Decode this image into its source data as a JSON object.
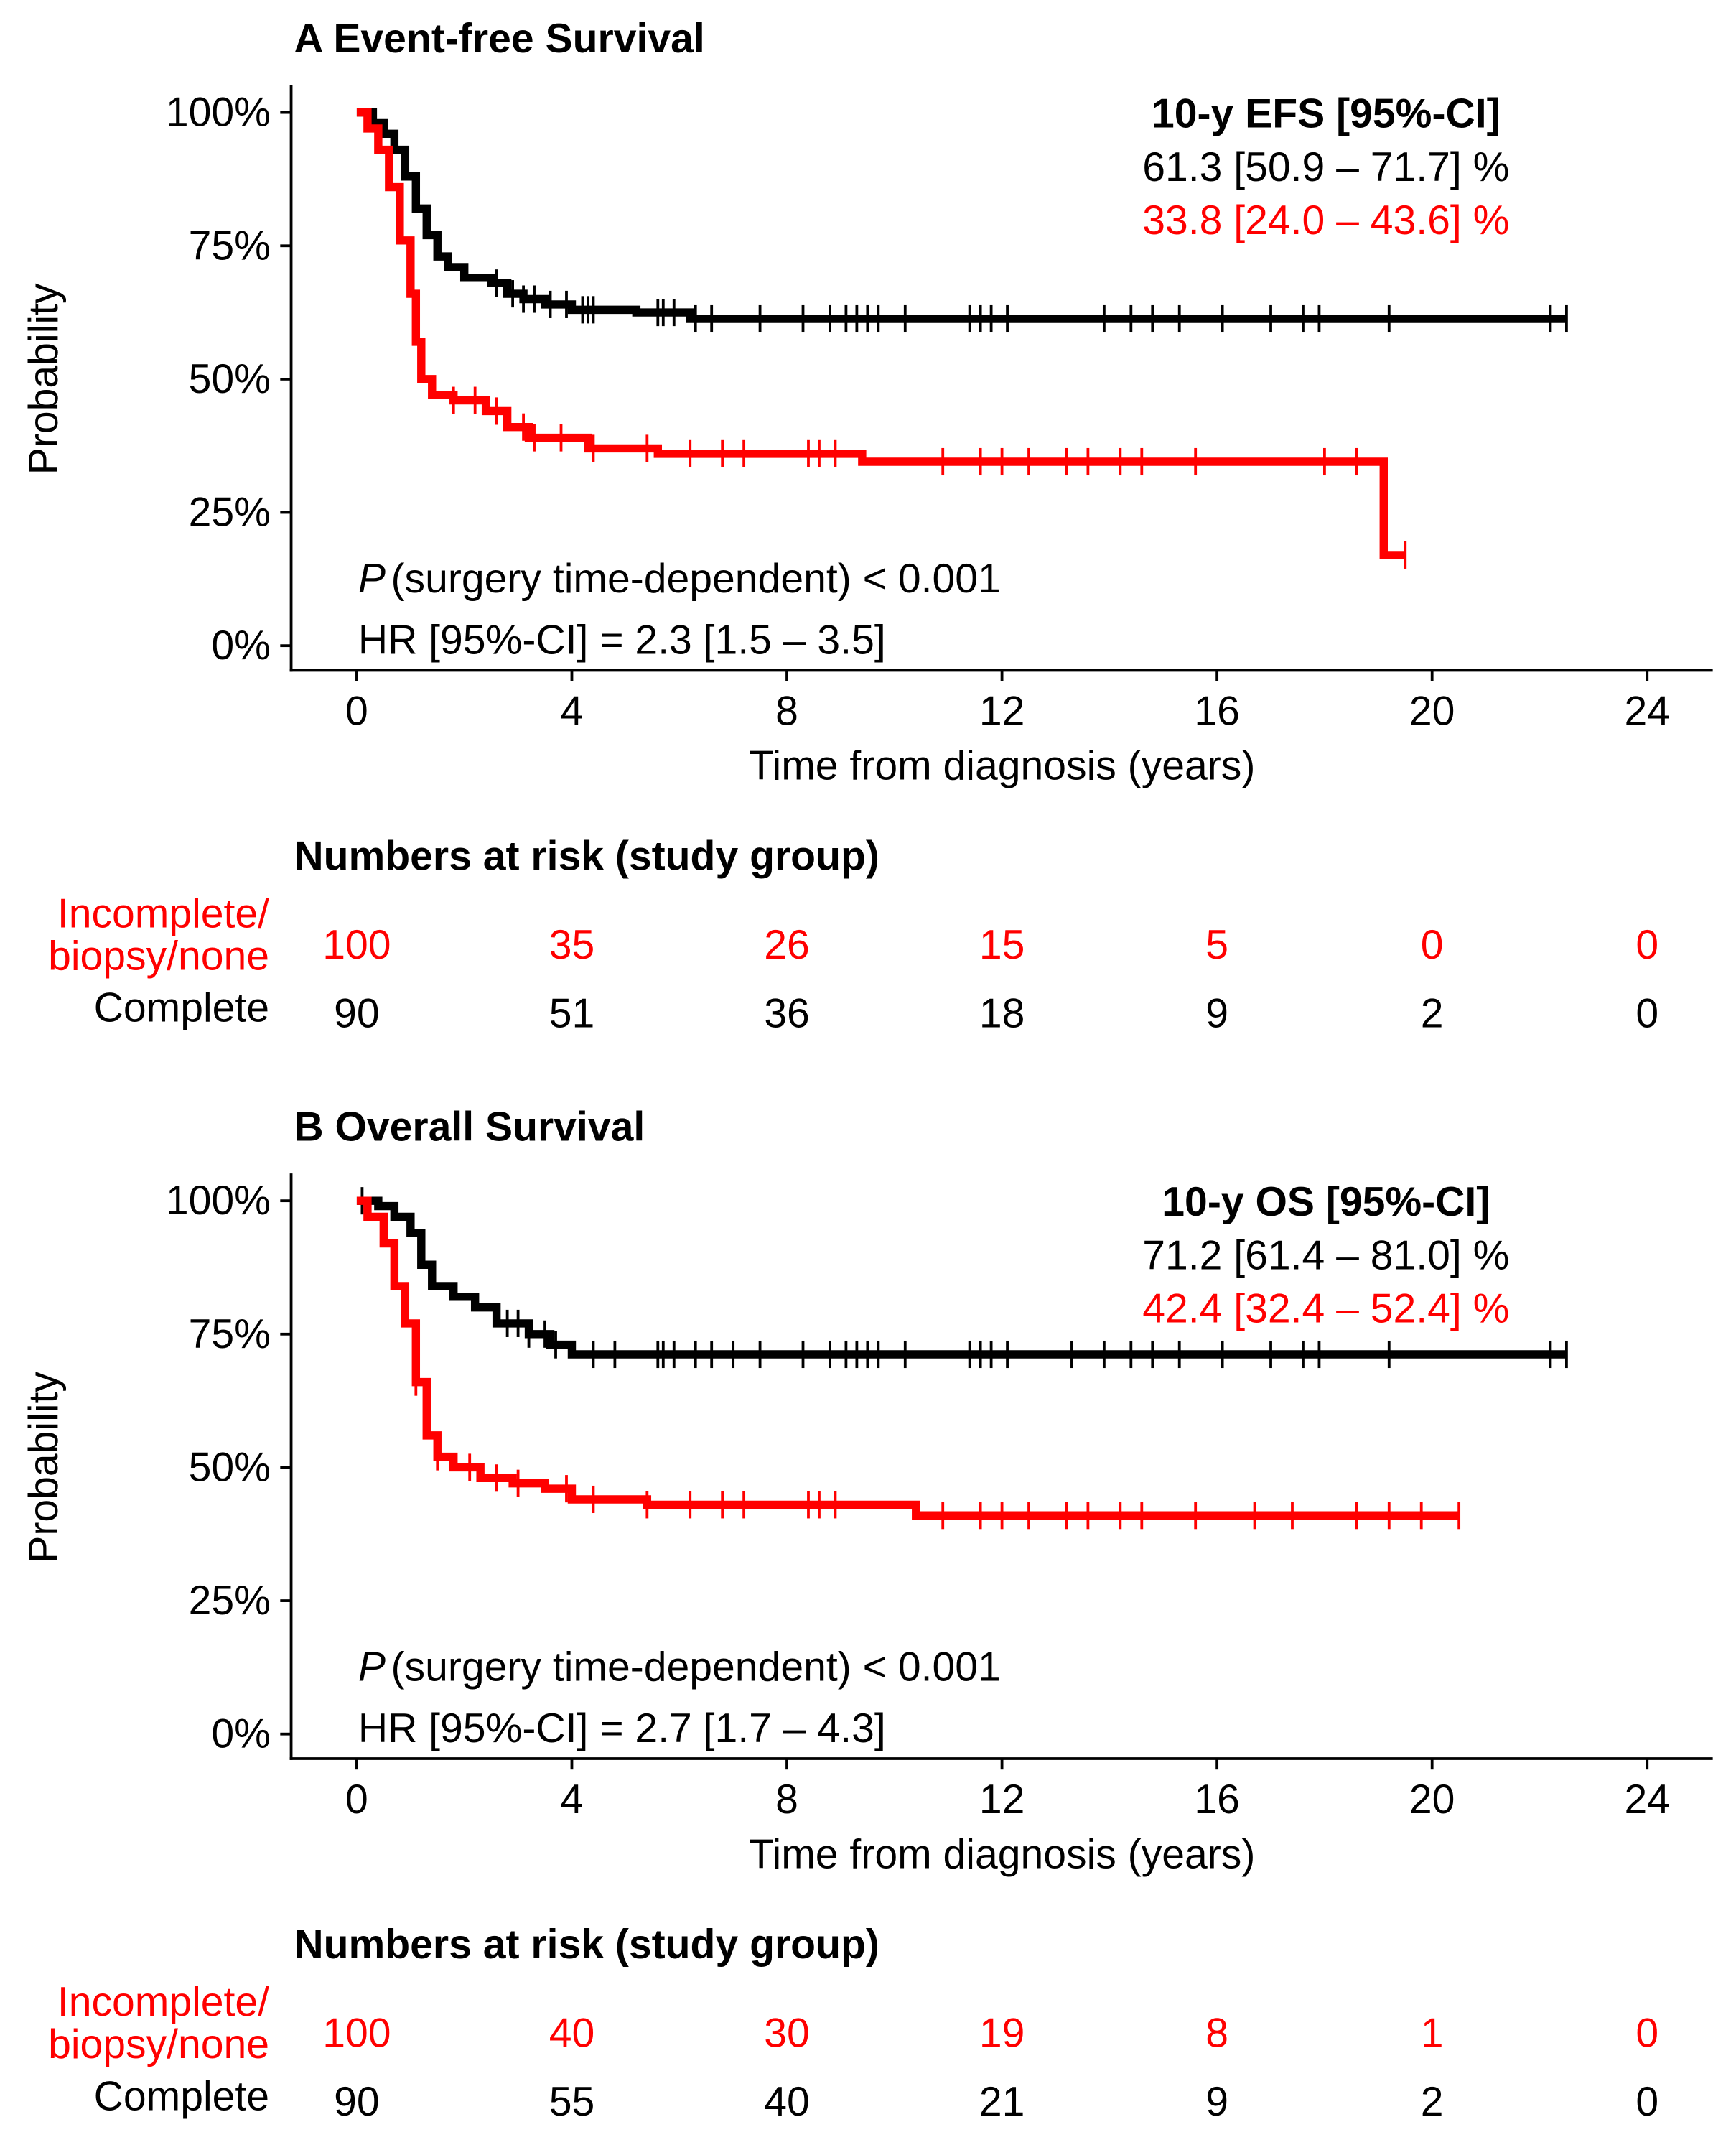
{
  "chart_data": [
    {
      "type": "line",
      "title": "A Event-free Survival",
      "xlabel": "Time from diagnosis (years)",
      "ylabel": "Probability",
      "xlim": [
        0,
        24
      ],
      "ylim": [
        0,
        100
      ],
      "xticks": [
        "0",
        "4",
        "8",
        "12",
        "16",
        "20",
        "24"
      ],
      "yticks": [
        "0%",
        "25%",
        "50%",
        "75%",
        "100%"
      ],
      "annotation_title": "10-y EFS [95%-CI]",
      "annotation_black": "61.3 [50.9 – 71.7] %",
      "annotation_red": "33.8 [24.0 – 43.6] %",
      "p_label": "P",
      "p_text": "(surgery time-dependent) < 0.001",
      "hr_text": "HR [95%-CI] = 2.3 [1.5 – 3.5]",
      "series": [
        {
          "name": "Complete",
          "color": "#000000",
          "steps": [
            [
              0,
              100
            ],
            [
              0.3,
              98
            ],
            [
              0.5,
              96
            ],
            [
              0.7,
              93
            ],
            [
              0.9,
              88
            ],
            [
              1.1,
              82
            ],
            [
              1.3,
              77
            ],
            [
              1.5,
              73
            ],
            [
              1.7,
              71
            ],
            [
              2.0,
              69
            ],
            [
              2.5,
              68
            ],
            [
              2.8,
              66
            ],
            [
              3.1,
              65
            ],
            [
              3.5,
              64
            ],
            [
              4.0,
              63
            ],
            [
              5.2,
              62.5
            ],
            [
              6.2,
              61.3
            ],
            [
              22.5,
              61.3
            ]
          ],
          "censored": [
            2.6,
            2.9,
            3.1,
            3.3,
            3.6,
            3.9,
            4.2,
            4.3,
            4.4,
            5.6,
            5.7,
            5.9,
            6.3,
            6.6,
            7.5,
            8.3,
            8.8,
            9.1,
            9.3,
            9.5,
            9.7,
            10.2,
            11.4,
            11.6,
            11.8,
            12.1,
            13.9,
            14.4,
            14.8,
            15.3,
            16.1,
            17.0,
            17.6,
            17.9,
            19.2,
            22.2,
            22.5
          ]
        },
        {
          "name": "Incomplete/biopsy/none",
          "color": "#ff0000",
          "steps": [
            [
              0,
              100
            ],
            [
              0.2,
              97
            ],
            [
              0.4,
              93
            ],
            [
              0.6,
              86
            ],
            [
              0.8,
              76
            ],
            [
              1.0,
              66
            ],
            [
              1.1,
              57
            ],
            [
              1.2,
              50
            ],
            [
              1.4,
              47
            ],
            [
              1.8,
              46
            ],
            [
              2.4,
              44
            ],
            [
              2.8,
              41
            ],
            [
              3.2,
              39
            ],
            [
              4.3,
              37
            ],
            [
              5.6,
              36
            ],
            [
              9.4,
              34.5
            ],
            [
              19.1,
              34.5
            ],
            [
              19.1,
              17
            ],
            [
              19.5,
              17
            ]
          ],
          "censored": [
            1.8,
            2.2,
            2.6,
            3.1,
            3.3,
            3.8,
            4.4,
            5.4,
            6.2,
            6.8,
            7.2,
            8.4,
            8.6,
            8.9,
            10.9,
            11.6,
            12.0,
            12.5,
            13.2,
            13.6,
            14.2,
            14.6,
            15.6,
            18.0,
            18.6,
            19.5
          ]
        }
      ],
      "risk_table": {
        "title": "Numbers at risk (study group)",
        "rows": [
          {
            "label1": "Incomplete/",
            "label2": "biopsy/none",
            "values": [
              "100",
              "35",
              "26",
              "15",
              "5",
              "0",
              "0"
            ]
          },
          {
            "label1": "Complete",
            "values": [
              "90",
              "51",
              "36",
              "18",
              "9",
              "2",
              "0"
            ]
          }
        ]
      }
    },
    {
      "type": "line",
      "title": "B Overall Survival",
      "xlabel": "Time from diagnosis (years)",
      "ylabel": "Probability",
      "xlim": [
        0,
        24
      ],
      "ylim": [
        0,
        100
      ],
      "xticks": [
        "0",
        "4",
        "8",
        "12",
        "16",
        "20",
        "24"
      ],
      "yticks": [
        "0%",
        "25%",
        "50%",
        "75%",
        "100%"
      ],
      "annotation_title": "10-y OS [95%-CI]",
      "annotation_black": "71.2 [61.4 – 81.0] %",
      "annotation_red": "42.4 [32.4 – 52.4] %",
      "p_label": "P",
      "p_text": "(surgery time-dependent) < 0.001",
      "hr_text": "HR [95%-CI] = 2.7 [1.7 – 4.3]",
      "series": [
        {
          "name": "Complete",
          "color": "#000000",
          "steps": [
            [
              0,
              100
            ],
            [
              0.4,
              99
            ],
            [
              0.7,
              97
            ],
            [
              1.0,
              94
            ],
            [
              1.2,
              88
            ],
            [
              1.4,
              84
            ],
            [
              1.8,
              82
            ],
            [
              2.2,
              80
            ],
            [
              2.6,
              77
            ],
            [
              3.2,
              75
            ],
            [
              3.6,
              73
            ],
            [
              4.0,
              71.2
            ],
            [
              22.5,
              71.2
            ]
          ],
          "censored": [
            0.1,
            2.8,
            3.0,
            3.2,
            3.5,
            3.7,
            4.4,
            4.8,
            5.6,
            5.7,
            5.9,
            6.3,
            6.6,
            7.0,
            7.5,
            8.3,
            8.8,
            9.1,
            9.3,
            9.5,
            9.7,
            10.2,
            11.4,
            11.6,
            11.8,
            12.1,
            13.3,
            13.9,
            14.4,
            14.8,
            15.3,
            16.1,
            17.0,
            17.6,
            17.9,
            19.2,
            22.2,
            22.5
          ]
        },
        {
          "name": "Incomplete/biopsy/none",
          "color": "#ff0000",
          "steps": [
            [
              0,
              100
            ],
            [
              0.2,
              97
            ],
            [
              0.5,
              92
            ],
            [
              0.7,
              84
            ],
            [
              0.9,
              77
            ],
            [
              1.1,
              66
            ],
            [
              1.3,
              56
            ],
            [
              1.5,
              52
            ],
            [
              1.8,
              50
            ],
            [
              2.3,
              48
            ],
            [
              2.9,
              47
            ],
            [
              3.5,
              46
            ],
            [
              4.0,
              44
            ],
            [
              5.4,
              43
            ],
            [
              10.4,
              41
            ],
            [
              20.5,
              41
            ]
          ],
          "censored": [
            1.1,
            1.5,
            2.1,
            2.6,
            3.0,
            3.9,
            4.4,
            5.4,
            6.2,
            6.8,
            7.2,
            8.4,
            8.6,
            8.9,
            10.9,
            11.6,
            12.0,
            12.5,
            13.2,
            13.6,
            14.2,
            14.6,
            15.6,
            16.7,
            17.4,
            18.6,
            19.2,
            19.8,
            20.5
          ]
        }
      ],
      "risk_table": {
        "title": "Numbers at risk (study group)",
        "rows": [
          {
            "label1": "Incomplete/",
            "label2": "biopsy/none",
            "values": [
              "100",
              "40",
              "30",
              "19",
              "8",
              "1",
              "0"
            ]
          },
          {
            "label1": "Complete",
            "values": [
              "90",
              "55",
              "40",
              "21",
              "9",
              "2",
              "0"
            ]
          }
        ]
      }
    }
  ]
}
